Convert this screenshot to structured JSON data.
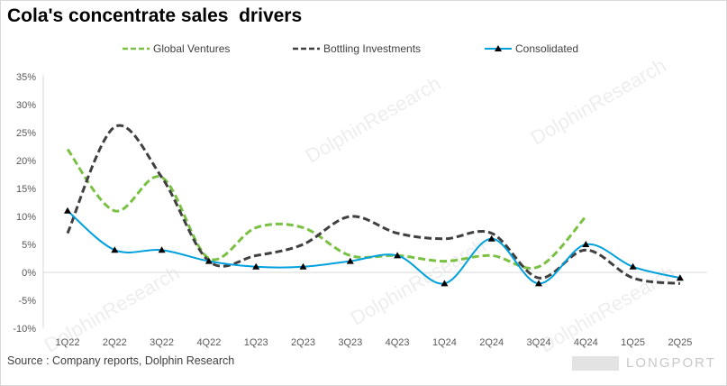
{
  "title": "Cola's concentrate sales  drivers",
  "source": "Source : Company reports, Dolphin Research",
  "watermarks": [
    "DolphinResearch",
    "DolphinResearch",
    "DolphinResearch",
    "DolphinResearch",
    "DolphinResearch"
  ],
  "brand": "LONGPORT",
  "colors": {
    "global": "#7ac143",
    "bottling": "#404040",
    "consolidated": "#00a0dc"
  },
  "chart_data": {
    "type": "line",
    "title": "Cola's concentrate sales  drivers",
    "categories": [
      "1Q22",
      "2Q22",
      "3Q22",
      "4Q22",
      "1Q23",
      "2Q23",
      "3Q23",
      "4Q23",
      "1Q24",
      "2Q24",
      "3Q24",
      "4Q24",
      "1Q25",
      "2Q25"
    ],
    "yticks": [
      "35%",
      "30%",
      "25%",
      "20%",
      "15%",
      "10%",
      "5%",
      "0%",
      "-5%",
      "-10%"
    ],
    "ylim": [
      -10,
      35
    ],
    "legend_position": "top",
    "series": [
      {
        "name": "Global Ventures",
        "style": "dashed",
        "color": "#7ac143",
        "values": [
          22,
          11,
          17,
          2.5,
          8,
          8,
          3,
          3,
          2,
          3,
          1,
          10,
          null,
          null
        ]
      },
      {
        "name": "Bottling Investments",
        "style": "dashed",
        "color": "#404040",
        "values": [
          7,
          26,
          17,
          2,
          3,
          5,
          10,
          7,
          6,
          7,
          -1,
          4,
          -1,
          -2
        ]
      },
      {
        "name": "Consolidated",
        "style": "solid-triangle",
        "color": "#00a0dc",
        "values": [
          11,
          4,
          4,
          2,
          1,
          1,
          2,
          3,
          -2,
          6,
          -2,
          5,
          1,
          -1
        ]
      }
    ]
  }
}
